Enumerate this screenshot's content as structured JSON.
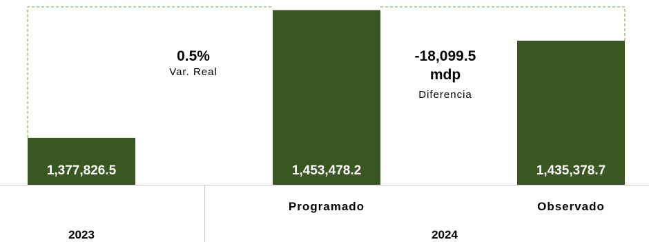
{
  "chart_data": {
    "type": "bar",
    "categories": [
      "2023",
      "Programado",
      "Observado"
    ],
    "values": [
      1377826.5,
      1453478.2,
      1435378.7
    ],
    "value_labels": [
      "1,377,826.5",
      "1,453,478.2",
      "1,435,378.7"
    ],
    "group_labels": [
      "2023",
      "2024"
    ],
    "sub_labels": [
      "",
      "Programado",
      "Observado"
    ],
    "ylim": [
      1350000,
      1455000
    ],
    "grid": false,
    "bar_color": "#3A5722",
    "connector_color": "#7CC04E",
    "annotations": {
      "var_real": {
        "value": "0.5%",
        "label": "Var. Real"
      },
      "diferencia": {
        "value_line1": "-18,099.5",
        "value_line2": "mdp",
        "label": "Diferencia"
      }
    }
  }
}
